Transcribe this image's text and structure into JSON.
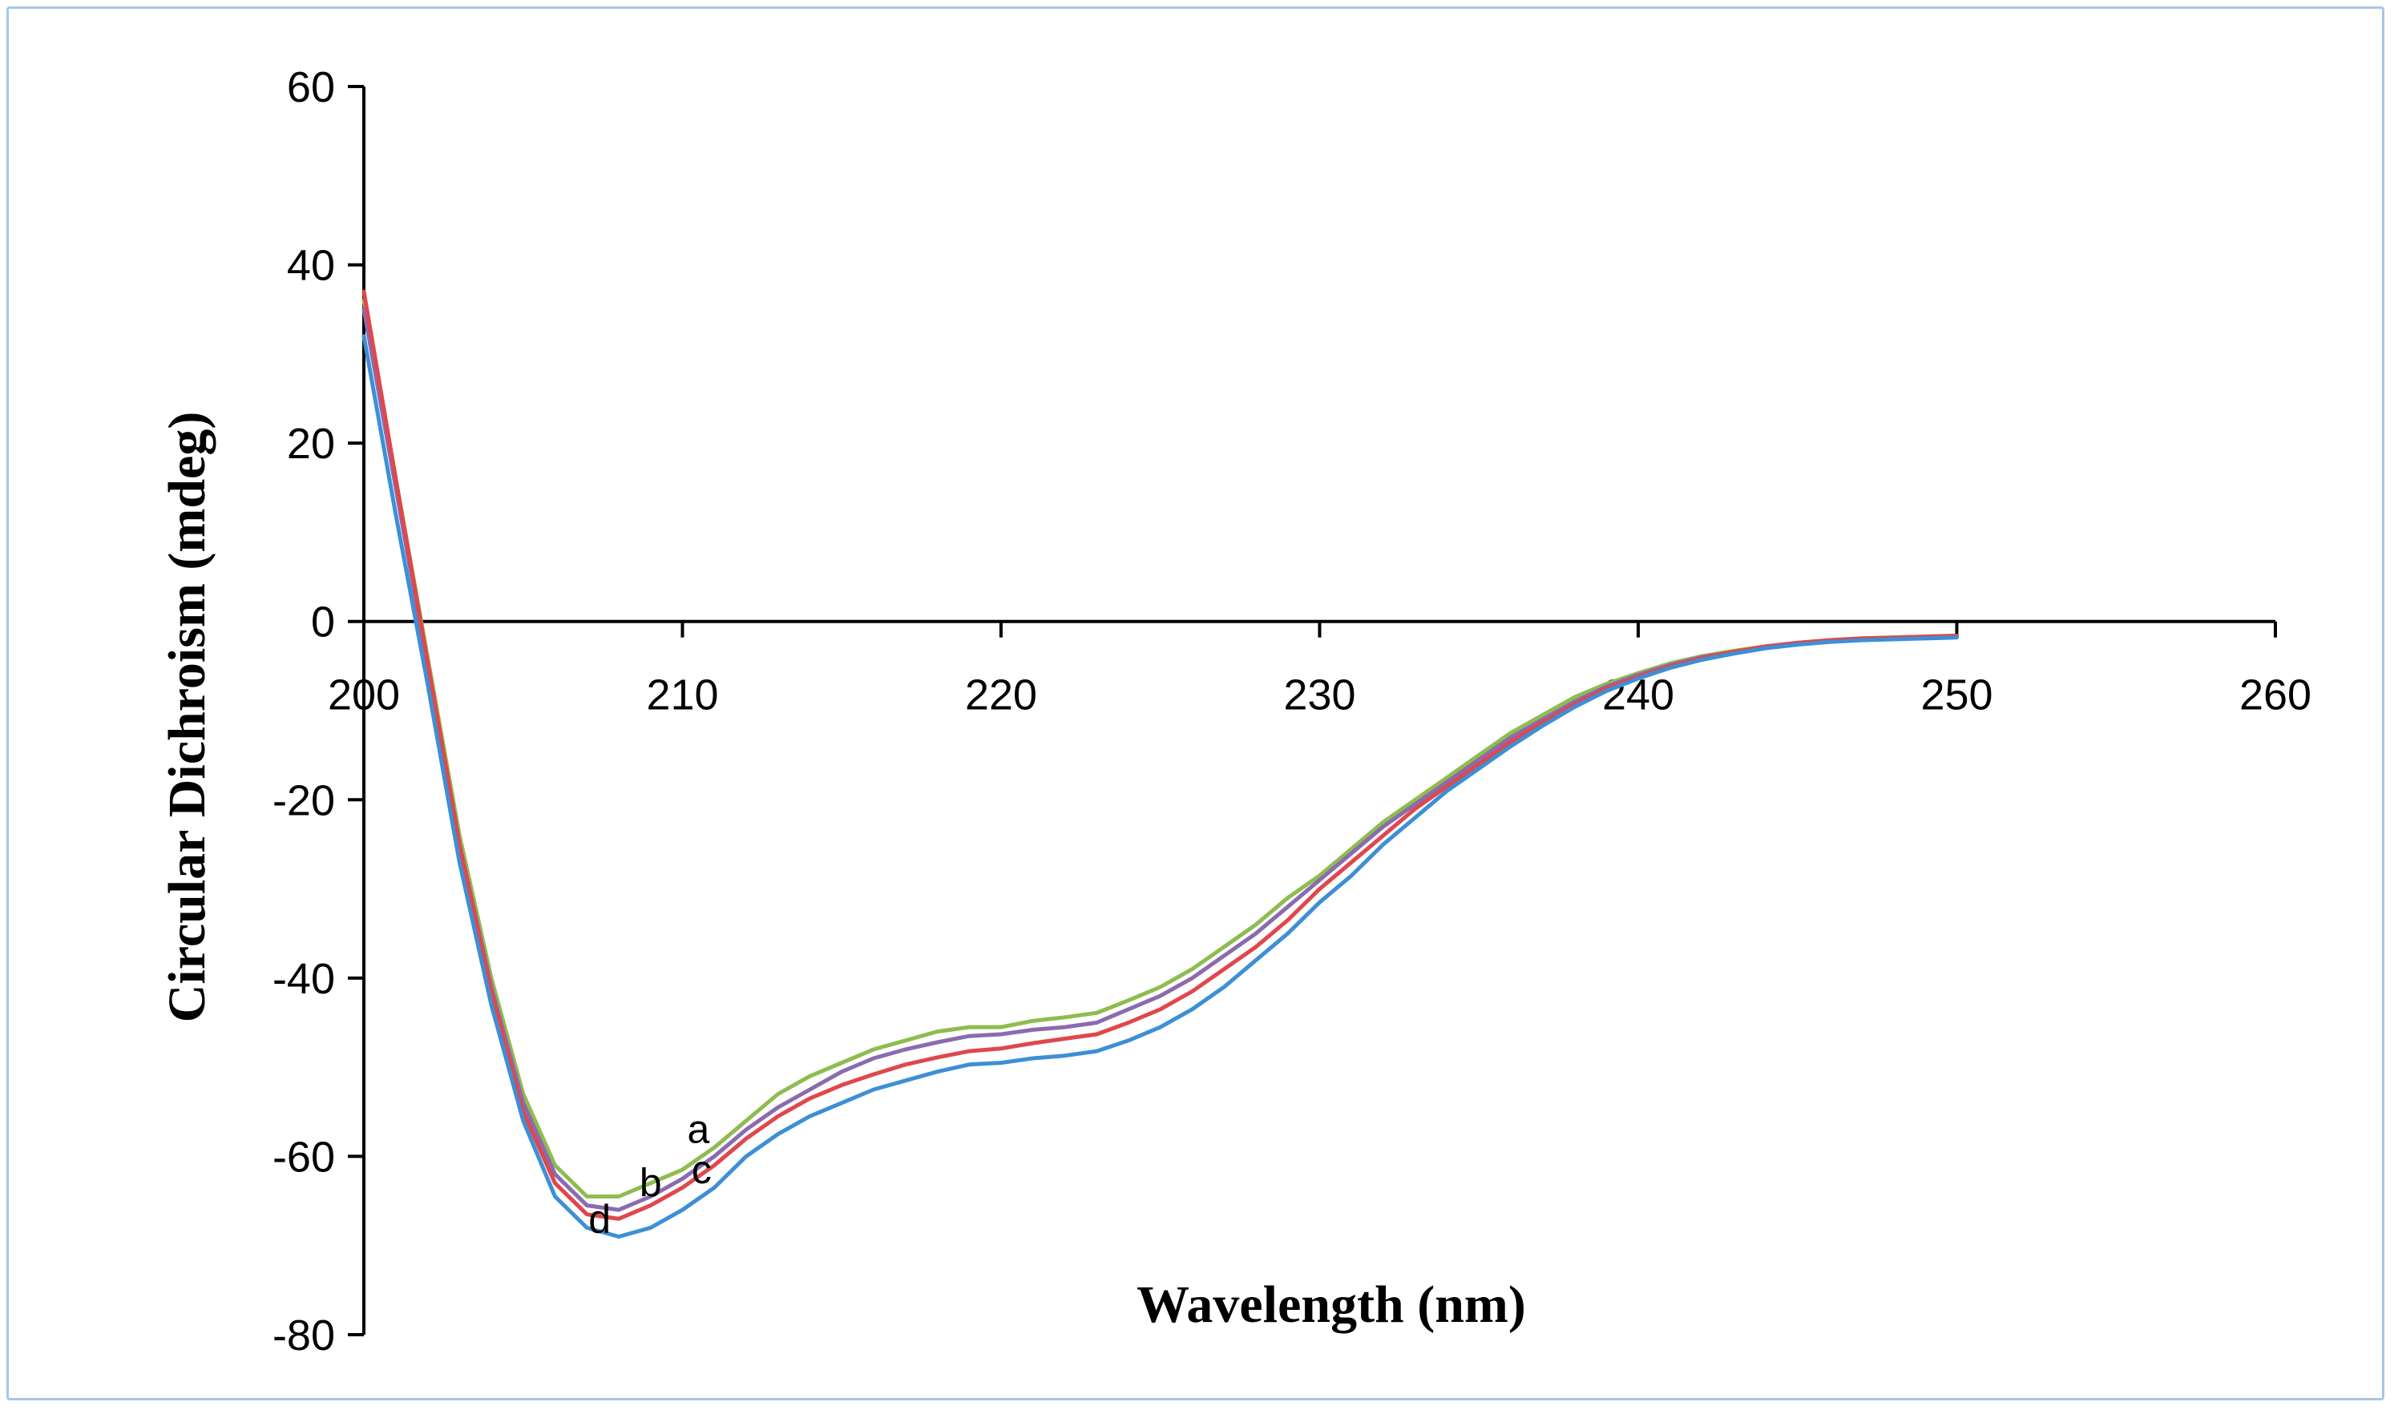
{
  "chart_data": {
    "type": "line",
    "title": "",
    "xlabel": "Wavelength (nm)",
    "ylabel": "Circular Dichroism (mdeg)",
    "xlim": [
      200,
      260
    ],
    "ylim": [
      -80,
      60
    ],
    "xticks": [
      200,
      210,
      220,
      230,
      240,
      250,
      260
    ],
    "yticks": [
      60,
      40,
      20,
      0,
      -20,
      -40,
      -60,
      -80
    ],
    "x": [
      200,
      201,
      202,
      203,
      204,
      205,
      206,
      207,
      208,
      209,
      210,
      211,
      212,
      213,
      214,
      215,
      216,
      217,
      218,
      219,
      220,
      221,
      222,
      223,
      224,
      225,
      226,
      227,
      228,
      229,
      230,
      231,
      232,
      233,
      234,
      235,
      236,
      237,
      238,
      239,
      240,
      241,
      242,
      243,
      244,
      245,
      246,
      247,
      248,
      249,
      250
    ],
    "series": [
      {
        "name": "a",
        "color": "#8fbc4f",
        "values": [
          36,
          16,
          -4,
          -24,
          -40,
          -53,
          -61,
          -64.5,
          -64.5,
          -63,
          -61.5,
          -59,
          -56,
          -53,
          -51,
          -49.5,
          -48,
          -47,
          -46,
          -45.5,
          -45.5,
          -44.8,
          -44.4,
          -43.9,
          -42.5,
          -41,
          -39,
          -36.5,
          -34,
          -31,
          -28.5,
          -25.5,
          -22.5,
          -20,
          -17.5,
          -15,
          -12.5,
          -10.5,
          -8.5,
          -7,
          -5.8,
          -4.7,
          -3.9,
          -3.3,
          -2.8,
          -2.4,
          -2.1,
          -1.9,
          -1.8,
          -1.7,
          -1.6
        ]
      },
      {
        "name": "b",
        "color": "#8a6bb0",
        "values": [
          35,
          15,
          -5,
          -25,
          -41,
          -54,
          -62,
          -65.5,
          -66,
          -64.5,
          -62.5,
          -60,
          -57,
          -54.5,
          -52.5,
          -50.5,
          -49,
          -48,
          -47.2,
          -46.5,
          -46.3,
          -45.8,
          -45.5,
          -45,
          -43.5,
          -42,
          -40,
          -37.5,
          -35,
          -32,
          -29,
          -26,
          -23,
          -20.5,
          -18,
          -15.5,
          -13,
          -11,
          -9,
          -7.3,
          -6,
          -4.9,
          -4,
          -3.4,
          -2.9,
          -2.5,
          -2.2,
          -2,
          -1.9,
          -1.8,
          -1.7
        ]
      },
      {
        "name": "c",
        "color": "#e0474c",
        "values": [
          37,
          16,
          -4.5,
          -25,
          -41.5,
          -55,
          -63,
          -66.5,
          -67,
          -65.5,
          -63.5,
          -61,
          -58,
          -55.5,
          -53.5,
          -52,
          -50.8,
          -49.7,
          -48.9,
          -48.2,
          -47.9,
          -47.3,
          -46.8,
          -46.3,
          -45,
          -43.5,
          -41.5,
          -39,
          -36.5,
          -33.5,
          -30,
          -27,
          -24,
          -21,
          -18.5,
          -16,
          -13.5,
          -11.3,
          -9.3,
          -7.5,
          -6.2,
          -5,
          -4.1,
          -3.4,
          -2.8,
          -2.4,
          -2.1,
          -1.9,
          -1.8,
          -1.7,
          -1.6
        ]
      },
      {
        "name": "d",
        "color": "#3d8fd6",
        "values": [
          32,
          12,
          -7,
          -27,
          -43,
          -56,
          -64.5,
          -68,
          -69,
          -68,
          -66,
          -63.5,
          -60,
          -57.5,
          -55.5,
          -54,
          -52.5,
          -51.5,
          -50.5,
          -49.7,
          -49.5,
          -49,
          -48.7,
          -48.2,
          -47,
          -45.5,
          -43.5,
          -41,
          -38,
          -35,
          -31.5,
          -28.5,
          -25,
          -22,
          -19,
          -16.5,
          -14,
          -11.7,
          -9.6,
          -7.8,
          -6.4,
          -5.2,
          -4.3,
          -3.6,
          -3,
          -2.6,
          -2.3,
          -2.1,
          -2,
          -1.9,
          -1.8
        ]
      }
    ],
    "annotations": [
      {
        "text": "a",
        "x": 210.5,
        "y": -58.5
      },
      {
        "text": "b",
        "x": 209,
        "y": -64.5
      },
      {
        "text": "c",
        "x": 210.6,
        "y": -63
      },
      {
        "text": "d",
        "x": 207.4,
        "y": -68.6
      }
    ]
  }
}
